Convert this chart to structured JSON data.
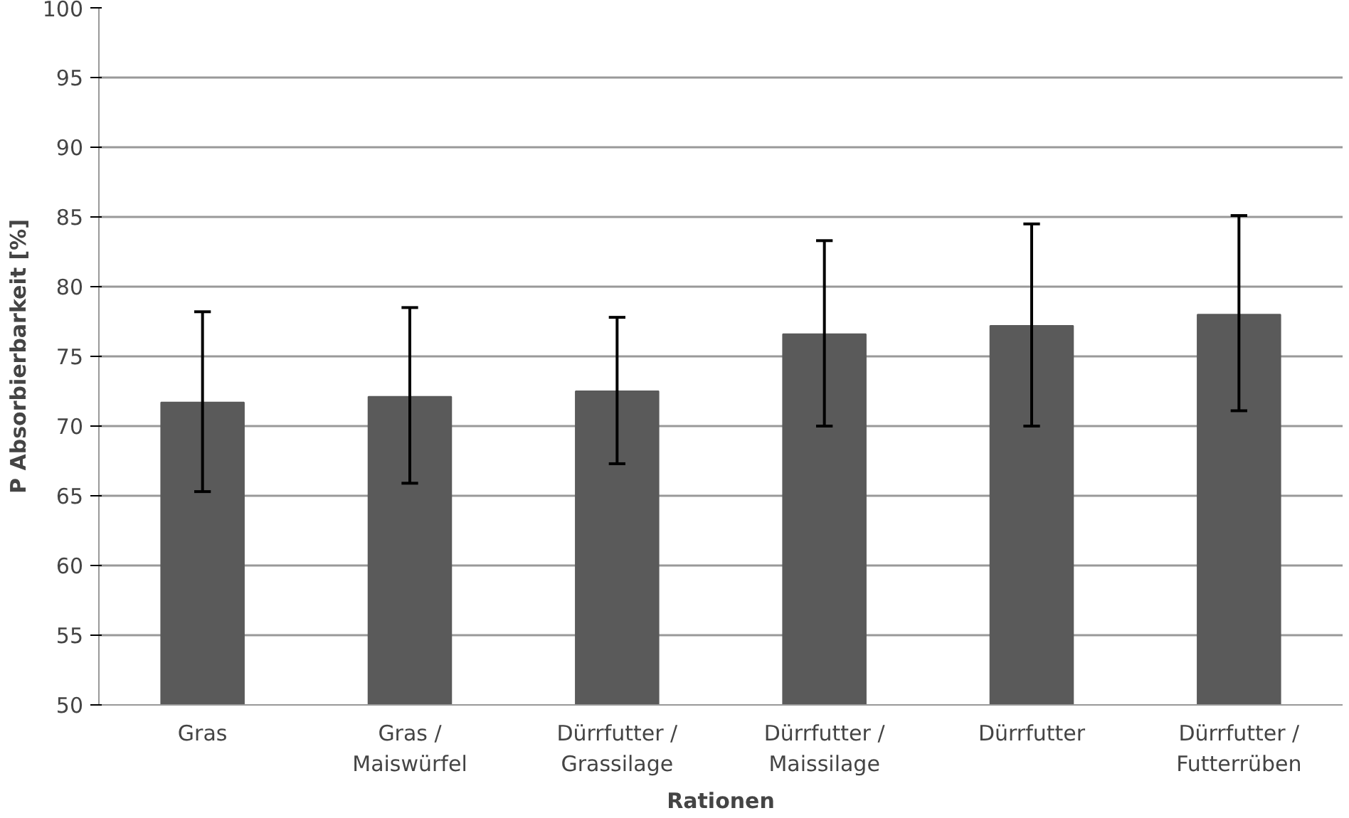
{
  "chart_data": {
    "type": "bar",
    "xlabel": "Rationen",
    "ylabel": "P Absorbierbarkeit [%]",
    "categories": [
      "Gras",
      "Gras /\nMaiswürfel",
      "Dürrfutter /\nGrassilage",
      "Dürrfutter /\nMaissilage",
      "Dürrfutter",
      "Dürrfutter /\nFutterrüben"
    ],
    "values": [
      71.7,
      72.1,
      72.5,
      76.6,
      77.2,
      78.0
    ],
    "errors": [
      [
        65.3,
        78.2
      ],
      [
        65.9,
        78.5
      ],
      [
        67.3,
        77.8
      ],
      [
        70.0,
        83.3
      ],
      [
        70.0,
        84.5
      ],
      [
        71.1,
        85.1
      ]
    ],
    "color": "#5a5a5a",
    "ylim": [
      50,
      100
    ],
    "yticks": [
      50,
      55,
      60,
      65,
      70,
      75,
      80,
      85,
      90,
      95,
      100
    ],
    "grid": "y"
  }
}
